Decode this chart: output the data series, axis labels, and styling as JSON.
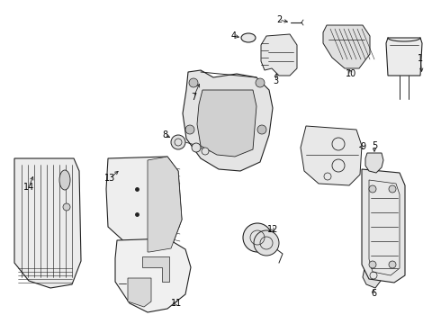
{
  "background_color": "#ffffff",
  "line_color": "#222222",
  "label_color": "#000000",
  "fig_width": 4.9,
  "fig_height": 3.6,
  "dpi": 100,
  "lw": 0.7,
  "label_fontsize": 7.0
}
